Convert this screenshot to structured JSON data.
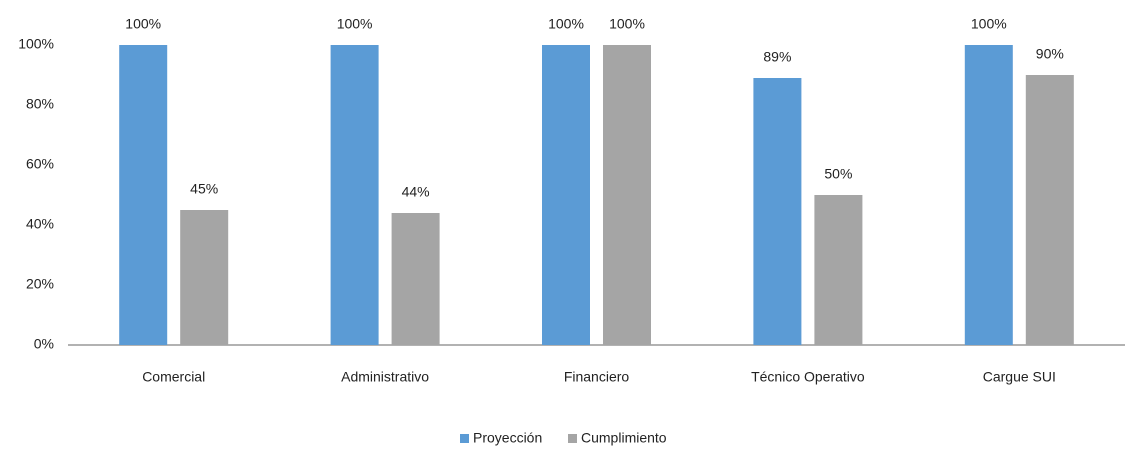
{
  "chart_data": {
    "type": "bar",
    "categories": [
      "Comercial",
      "Administrativo",
      "Financiero",
      "Técnico Operativo",
      "Cargue SUI"
    ],
    "series": [
      {
        "name": "Proyección",
        "color": "#5b9bd5",
        "values": [
          100,
          100,
          100,
          89,
          100
        ],
        "value_labels": [
          "100%",
          "100%",
          "100%",
          "89%",
          "100%"
        ]
      },
      {
        "name": "Cumplimiento",
        "color": "#a5a5a5",
        "values": [
          45,
          44,
          100,
          50,
          90
        ],
        "value_labels": [
          "45%",
          "44%",
          "100%",
          "50%",
          "90%"
        ]
      }
    ],
    "ylim": [
      0,
      100
    ],
    "yticks": [
      {
        "value": 0,
        "label": "0%"
      },
      {
        "value": 20,
        "label": "20%"
      },
      {
        "value": 40,
        "label": "40%"
      },
      {
        "value": 60,
        "label": "60%"
      },
      {
        "value": 80,
        "label": "80%"
      },
      {
        "value": 100,
        "label": "100%"
      }
    ],
    "grid": false,
    "legend": "bottom"
  }
}
